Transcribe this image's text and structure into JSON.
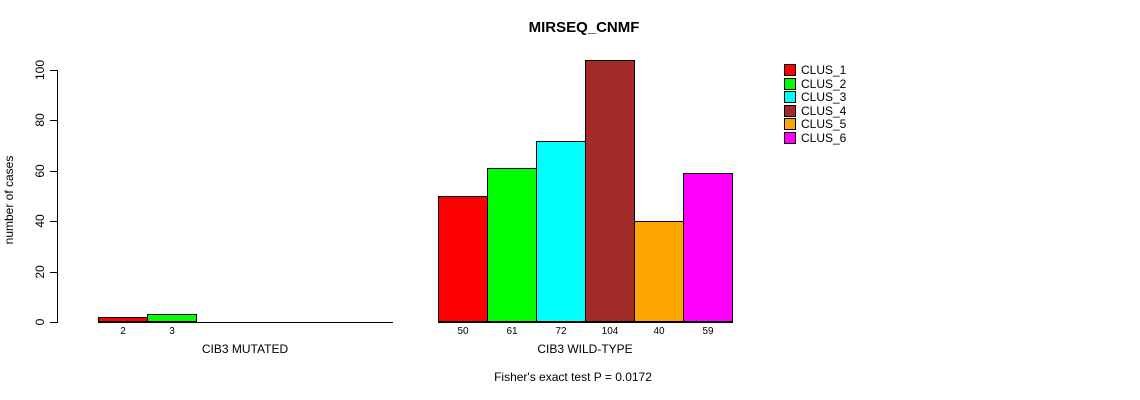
{
  "chart_data": {
    "type": "bar",
    "title": "MIRSEQ_CNMF",
    "ylabel": "number of cases",
    "xlabel": "",
    "ylim": [
      0,
      100
    ],
    "yticks": [
      0,
      20,
      40,
      60,
      80,
      100
    ],
    "grid": false,
    "legend_position": "right",
    "annotation": "Fisher's exact test P = 0.0172",
    "legend": [
      {
        "label": "CLUS_1",
        "color": "#ff0000"
      },
      {
        "label": "CLUS_2",
        "color": "#00ff00"
      },
      {
        "label": "CLUS_3",
        "color": "#00ffff"
      },
      {
        "label": "CLUS_4",
        "color": "#a52a2a"
      },
      {
        "label": "CLUS_5",
        "color": "#ffa500"
      },
      {
        "label": "CLUS_6",
        "color": "#ff00ff"
      }
    ],
    "groups": [
      {
        "label": "CIB3 MUTATED",
        "series": [
          {
            "name": "CLUS_1",
            "value": 2,
            "color": "#ff0000"
          },
          {
            "name": "CLUS_2",
            "value": 3,
            "color": "#00ff00"
          },
          {
            "name": "CLUS_3",
            "value": 0,
            "color": "#00ffff"
          },
          {
            "name": "CLUS_4",
            "value": 0,
            "color": "#a52a2a"
          },
          {
            "name": "CLUS_5",
            "value": 0,
            "color": "#ffa500"
          },
          {
            "name": "CLUS_6",
            "value": 0,
            "color": "#ff00ff"
          }
        ]
      },
      {
        "label": "CIB3 WILD-TYPE",
        "series": [
          {
            "name": "CLUS_1",
            "value": 50,
            "color": "#ff0000"
          },
          {
            "name": "CLUS_2",
            "value": 61,
            "color": "#00ff00"
          },
          {
            "name": "CLUS_3",
            "value": 72,
            "color": "#00ffff"
          },
          {
            "name": "CLUS_4",
            "value": 104,
            "color": "#a52a2a"
          },
          {
            "name": "CLUS_5",
            "value": 40,
            "color": "#ffa500"
          },
          {
            "name": "CLUS_6",
            "value": 59,
            "color": "#ff00ff"
          }
        ]
      }
    ]
  },
  "colors": {
    "axis": "#000000",
    "background": "#ffffff",
    "text": "#000000"
  }
}
